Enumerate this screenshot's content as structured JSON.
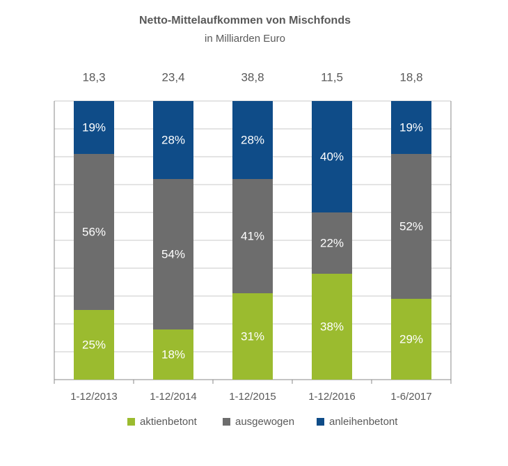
{
  "chart_data": {
    "type": "stacked_bar_100",
    "title": "Netto-Mittelaufkommen von Mischfonds",
    "subtitle": "in Milliarden Euro",
    "categories": [
      "1-12/2013",
      "1-12/2014",
      "1-12/2015",
      "1-12/2016",
      "1-6/2017"
    ],
    "totals": [
      18.3,
      23.4,
      38.8,
      11.5,
      18.8
    ],
    "total_labels": [
      "18,3",
      "23,4",
      "38,8",
      "11,5",
      "18,8"
    ],
    "series": [
      {
        "name": "aktienbetont",
        "color": "#9bbb2f",
        "values": [
          25,
          18,
          31,
          38,
          29
        ],
        "value_labels": [
          "25%",
          "18%",
          "31%",
          "38%",
          "29%"
        ]
      },
      {
        "name": "ausgewogen",
        "color": "#6d6d6d",
        "values": [
          56,
          54,
          41,
          22,
          52
        ],
        "value_labels": [
          "56%",
          "54%",
          "41%",
          "22%",
          "52%"
        ]
      },
      {
        "name": "anleihenbetont",
        "color": "#0f4c88",
        "values": [
          19,
          28,
          28,
          40,
          19
        ],
        "value_labels": [
          "19%",
          "28%",
          "28%",
          "40%",
          "19%"
        ]
      }
    ],
    "ylim": [
      0,
      100
    ],
    "yticks": [
      0,
      10,
      20,
      30,
      40,
      50,
      60,
      70,
      80,
      90,
      100
    ],
    "grid": true,
    "legend": "bottom"
  }
}
